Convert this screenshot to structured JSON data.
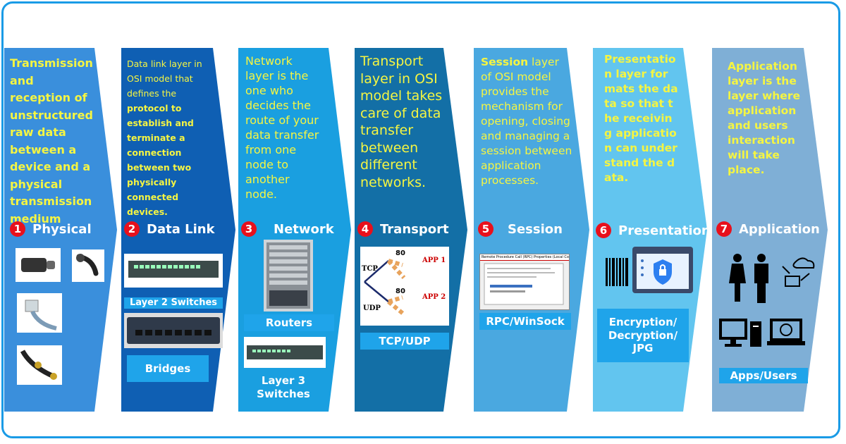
{
  "colors": {
    "frame": "#1a9be6",
    "layer1": "#3a8fdc",
    "layer2": "#0f5fb3",
    "layer3": "#1a9fe0",
    "layer4": "#136fa6",
    "layer5": "#4aa8e0",
    "layer6": "#62c5ef",
    "layer7": "#7fafd6",
    "text_yellow": "#f5f542",
    "badge_red": "#e8101c"
  },
  "layers": [
    {
      "num": "1",
      "name": "Physical",
      "desc": "Transmission and reception of unstructured raw data between a device and a physical transmission medium",
      "items": [
        "usb-c-adapter",
        "bluetooth-headset",
        "ethernet-cable",
        "optical-cable"
      ]
    },
    {
      "num": "2",
      "name": "Data Link",
      "desc_a": "Data link layer in OSI model that defines the",
      "desc_b": "protocol to establish and terminate a connection between two physically connected devices.",
      "tag1": "Layer 2 Switches",
      "tag2": "Bridges"
    },
    {
      "num": "3",
      "name": "Network",
      "desc": "Network layer is the one who decides the route of your data transfer from one node to another node.",
      "tag1": "Routers",
      "tag2_a": "Layer 3",
      "tag2_b": "Switches"
    },
    {
      "num": "4",
      "name": "Transport",
      "desc": "Transport layer in OSI model takes care of data transfer between different networks.",
      "tag1": "TCP/UDP",
      "diagram": {
        "tcp": "TCP",
        "udp": "UDP",
        "port1": "80",
        "port2": "80",
        "app1": "APP 1",
        "app2": "APP 2"
      }
    },
    {
      "num": "5",
      "name": "Session",
      "desc_a": "Session",
      "desc_b": " layer of OSI model provides the mechanism for opening, closing and managing a session between application processes.",
      "tag1": "RPC/WinSock",
      "dialog_title": "Remote Procedure Call (RPC) Properties (Local Compu"
    },
    {
      "num": "6",
      "name": "Presentation",
      "desc": "Presentation layer formats the data so that the receiving application can understand the data.",
      "tag_a": "Encryption/",
      "tag_b": "Decryption/",
      "tag_c": "JPG"
    },
    {
      "num": "7",
      "name": "Application",
      "desc": "Application layer is the layer where application and users interaction will take place.",
      "tag1": "Apps/Users"
    }
  ]
}
